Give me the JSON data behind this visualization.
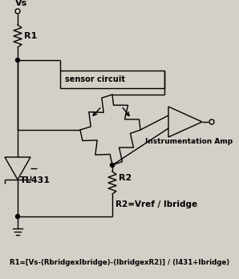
{
  "bg_color": "#d4d0c8",
  "line_color": "#000000",
  "vs_label": "Vs",
  "r1_label": "R1",
  "r2_label": "R2",
  "tl431_label": "TL431",
  "sensor_label": "sensor circuit",
  "amp_label": "Instrumentation Amp",
  "formula1": "R2=Vref / Ibridge",
  "formula2": "R1=[Vs-(RbridgexIbridge)-(IbridgexR2)] / (I431+Ibridge)",
  "fig_width": 2.98,
  "fig_height": 3.48,
  "dpi": 100
}
